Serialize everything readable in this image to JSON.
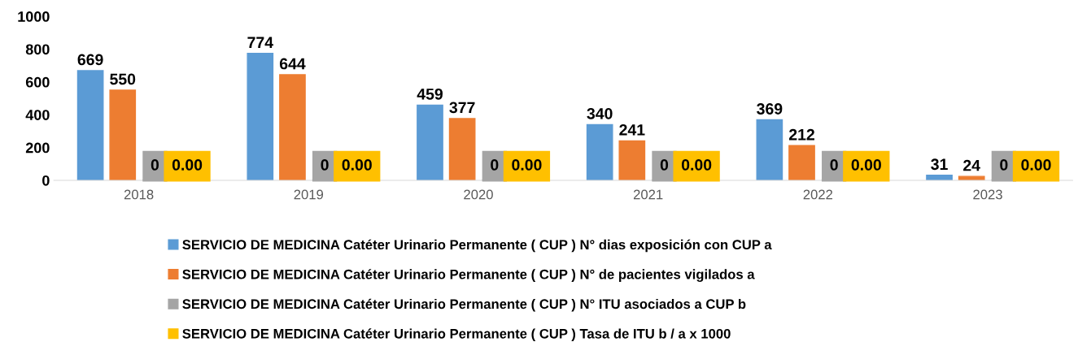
{
  "chart_data": {
    "type": "bar",
    "categories": [
      "2018",
      "2019",
      "2020",
      "2021",
      "2022",
      "2023"
    ],
    "ylim": [
      0,
      1000
    ],
    "yticks": [
      0,
      200,
      400,
      600,
      800,
      1000
    ],
    "grid": false,
    "legend": "bottom",
    "series": [
      {
        "name": "SERVICIO DE MEDICINA Catéter Urinario Permanente ( CUP ) N° dias exposición con CUP a",
        "color": "#5b9bd5",
        "values": [
          669,
          774,
          459,
          340,
          369,
          31
        ],
        "value_labels": [
          "669",
          "774",
          "459",
          "340",
          "369",
          "31"
        ]
      },
      {
        "name": "SERVICIO DE MEDICINA Catéter Urinario Permanente ( CUP ) N° de pacientes vigilados a",
        "color": "#ed7d31",
        "values": [
          550,
          644,
          377,
          241,
          212,
          24
        ],
        "value_labels": [
          "550",
          "644",
          "377",
          "241",
          "212",
          "24"
        ]
      },
      {
        "name": "SERVICIO DE MEDICINA Catéter Urinario Permanente ( CUP ) N° ITU asociados a CUP b",
        "color": "#a5a5a5",
        "values": [
          0,
          0,
          0,
          0,
          0,
          0
        ],
        "value_labels": [
          "0",
          "0",
          "0",
          "0",
          "0",
          "0"
        ]
      },
      {
        "name": "SERVICIO DE MEDICINA Catéter Urinario Permanente ( CUP ) Tasa de ITU b / a x 1000",
        "color": "#ffc000",
        "values": [
          0,
          0,
          0,
          0,
          0,
          0
        ],
        "value_labels": [
          "0.00",
          "0.00",
          "0.00",
          "0.00",
          "0.00",
          "0.00"
        ]
      }
    ]
  }
}
